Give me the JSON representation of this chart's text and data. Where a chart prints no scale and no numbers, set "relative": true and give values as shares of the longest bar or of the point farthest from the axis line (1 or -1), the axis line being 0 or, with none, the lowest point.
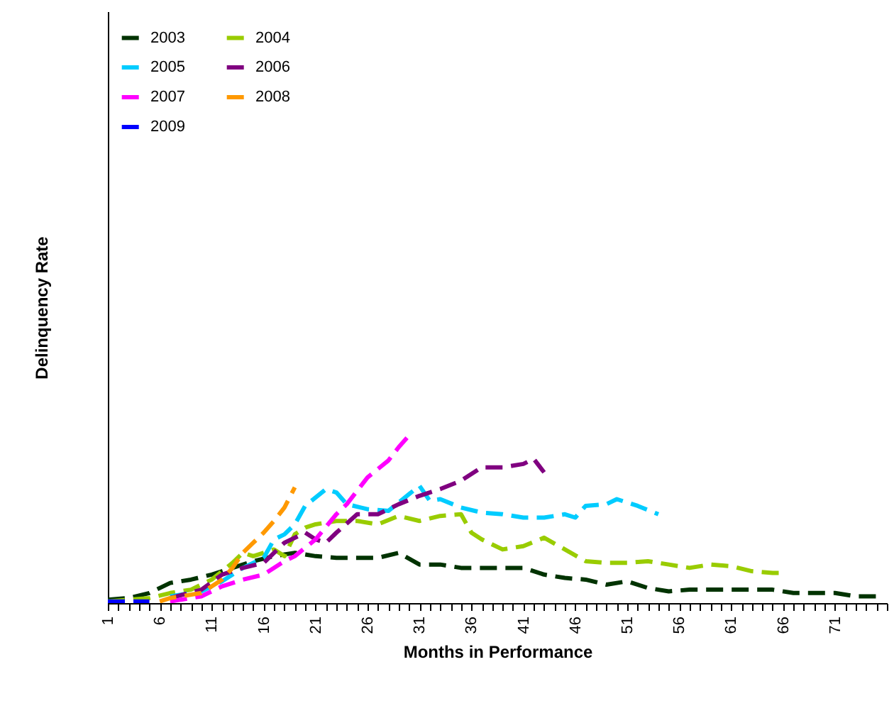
{
  "chart_data": {
    "type": "line",
    "xlabel": "Months in Performance",
    "ylabel": "Delinquency Rate",
    "relative": true,
    "grid": false,
    "legend": "top left",
    "marker": "none",
    "line_style": "dashed",
    "xlim": [
      1,
      76
    ],
    "xticks": [
      1,
      {
        "value": 2,
        "label": null
      },
      {
        "value": 3,
        "label": null
      },
      {
        "value": 4,
        "label": null
      },
      {
        "value": 5,
        "label": null
      },
      6,
      {
        "value": 7,
        "label": null
      },
      {
        "value": 8,
        "label": null
      },
      {
        "value": 9,
        "label": null
      },
      {
        "value": 10,
        "label": null
      },
      11,
      {
        "value": 12,
        "label": null
      },
      {
        "value": 13,
        "label": null
      },
      {
        "value": 14,
        "label": null
      },
      {
        "value": 15,
        "label": null
      },
      16,
      {
        "value": 17,
        "label": null
      },
      {
        "value": 18,
        "label": null
      },
      {
        "value": 19,
        "label": null
      },
      {
        "value": 20,
        "label": null
      },
      21,
      {
        "value": 22,
        "label": null
      },
      {
        "value": 23,
        "label": null
      },
      {
        "value": 24,
        "label": null
      },
      {
        "value": 25,
        "label": null
      },
      26,
      {
        "value": 27,
        "label": null
      },
      {
        "value": 28,
        "label": null
      },
      {
        "value": 29,
        "label": null
      },
      {
        "value": 30,
        "label": null
      },
      31,
      {
        "value": 32,
        "label": null
      },
      {
        "value": 33,
        "label": null
      },
      {
        "value": 34,
        "label": null
      },
      {
        "value": 35,
        "label": null
      },
      36,
      {
        "value": 37,
        "label": null
      },
      {
        "value": 38,
        "label": null
      },
      {
        "value": 39,
        "label": null
      },
      {
        "value": 40,
        "label": null
      },
      41,
      {
        "value": 42,
        "label": null
      },
      {
        "value": 43,
        "label": null
      },
      {
        "value": 44,
        "label": null
      },
      {
        "value": 45,
        "label": null
      },
      46,
      {
        "value": 47,
        "label": null
      },
      {
        "value": 48,
        "label": null
      },
      {
        "value": 49,
        "label": null
      },
      {
        "value": 50,
        "label": null
      },
      51,
      {
        "value": 52,
        "label": null
      },
      {
        "value": 53,
        "label": null
      },
      {
        "value": 54,
        "label": null
      },
      {
        "value": 55,
        "label": null
      },
      56,
      {
        "value": 57,
        "label": null
      },
      {
        "value": 58,
        "label": null
      },
      {
        "value": 59,
        "label": null
      },
      {
        "value": 60,
        "label": null
      },
      61,
      {
        "value": 62,
        "label": null
      },
      {
        "value": 63,
        "label": null
      },
      {
        "value": 64,
        "label": null
      },
      {
        "value": 65,
        "label": null
      },
      66,
      {
        "value": 67,
        "label": null
      },
      {
        "value": 68,
        "label": null
      },
      {
        "value": 69,
        "label": null
      },
      {
        "value": 70,
        "label": null
      },
      71,
      {
        "value": 72,
        "label": null
      },
      {
        "value": 73,
        "label": null
      },
      {
        "value": 74,
        "label": null
      },
      {
        "value": 75,
        "label": null
      },
      {
        "value": 76,
        "label": null
      }
    ],
    "series": [
      {
        "name": "2003",
        "color": "#003300",
        "x": [
          1,
          3,
          5,
          7,
          9,
          11,
          13,
          15,
          17,
          19,
          21,
          23,
          25,
          27,
          29,
          31,
          33,
          35,
          37,
          39,
          41,
          43,
          45,
          47,
          49,
          51,
          53,
          55,
          57,
          59,
          61,
          63,
          65,
          67,
          69,
          71,
          73,
          75
        ],
        "values": [
          0.02,
          0.03,
          0.06,
          0.12,
          0.14,
          0.17,
          0.21,
          0.25,
          0.28,
          0.3,
          0.28,
          0.27,
          0.27,
          0.27,
          0.3,
          0.23,
          0.23,
          0.21,
          0.21,
          0.21,
          0.21,
          0.17,
          0.15,
          0.14,
          0.11,
          0.13,
          0.09,
          0.07,
          0.08,
          0.08,
          0.08,
          0.08,
          0.08,
          0.06,
          0.06,
          0.06,
          0.04,
          0.04
        ]
      },
      {
        "name": "2004",
        "color": "#99cc00",
        "x": [
          1,
          3,
          5,
          7,
          9,
          11,
          13,
          14,
          15,
          17,
          18,
          19,
          20,
          21,
          23,
          25,
          27,
          29,
          31,
          33,
          35,
          36,
          37,
          39,
          41,
          43,
          45,
          47,
          49,
          51,
          53,
          55,
          57,
          59,
          61,
          63,
          65,
          66
        ],
        "values": [
          0.01,
          0.02,
          0.03,
          0.06,
          0.08,
          0.14,
          0.24,
          0.3,
          0.28,
          0.32,
          0.28,
          0.41,
          0.45,
          0.47,
          0.49,
          0.49,
          0.47,
          0.52,
          0.49,
          0.52,
          0.53,
          0.42,
          0.38,
          0.32,
          0.34,
          0.39,
          0.32,
          0.25,
          0.24,
          0.24,
          0.25,
          0.23,
          0.21,
          0.23,
          0.22,
          0.19,
          0.18,
          0.18
        ]
      },
      {
        "name": "2005",
        "color": "#00ccff",
        "x": [
          7,
          10,
          12,
          14,
          16,
          17,
          18,
          19,
          20,
          22,
          23,
          24,
          26,
          28,
          30,
          31,
          32,
          33,
          35,
          37,
          39,
          41,
          43,
          45,
          46,
          47,
          49,
          50,
          52,
          54
        ],
        "values": [
          0.04,
          0.07,
          0.13,
          0.21,
          0.27,
          0.38,
          0.41,
          0.47,
          0.58,
          0.68,
          0.66,
          0.59,
          0.56,
          0.55,
          0.65,
          0.7,
          0.61,
          0.62,
          0.57,
          0.54,
          0.53,
          0.51,
          0.51,
          0.53,
          0.51,
          0.58,
          0.59,
          0.62,
          0.58,
          0.53
        ]
      },
      {
        "name": "2006",
        "color": "#800080",
        "x": [
          7,
          10,
          12,
          14,
          16,
          18,
          20,
          21,
          22,
          23,
          25,
          27,
          29,
          31,
          33,
          35,
          37,
          39,
          41,
          42,
          43
        ],
        "values": [
          0.03,
          0.08,
          0.17,
          0.21,
          0.24,
          0.36,
          0.42,
          0.38,
          0.36,
          0.42,
          0.53,
          0.53,
          0.59,
          0.64,
          0.68,
          0.73,
          0.81,
          0.81,
          0.83,
          0.86,
          0.78
        ]
      },
      {
        "name": "2007",
        "color": "#ff00ff",
        "x": [
          7,
          10,
          12,
          14,
          16,
          18,
          19,
          21,
          23,
          24,
          26,
          28,
          29,
          30
        ],
        "values": [
          0.01,
          0.04,
          0.1,
          0.14,
          0.17,
          0.25,
          0.28,
          0.38,
          0.53,
          0.59,
          0.75,
          0.85,
          0.93,
          1
        ]
      },
      {
        "name": "2008",
        "color": "#ff9900",
        "x": [
          6,
          7,
          10,
          12,
          13,
          14,
          15,
          16,
          17,
          18,
          19
        ],
        "values": [
          0.01,
          0.03,
          0.06,
          0.14,
          0.21,
          0.3,
          0.36,
          0.42,
          0.49,
          0.57,
          0.69
        ]
      },
      {
        "name": "2009",
        "color": "#0000ff",
        "x": [
          1,
          3,
          5
        ],
        "values": [
          0.01,
          0.01,
          0.01
        ]
      }
    ]
  }
}
